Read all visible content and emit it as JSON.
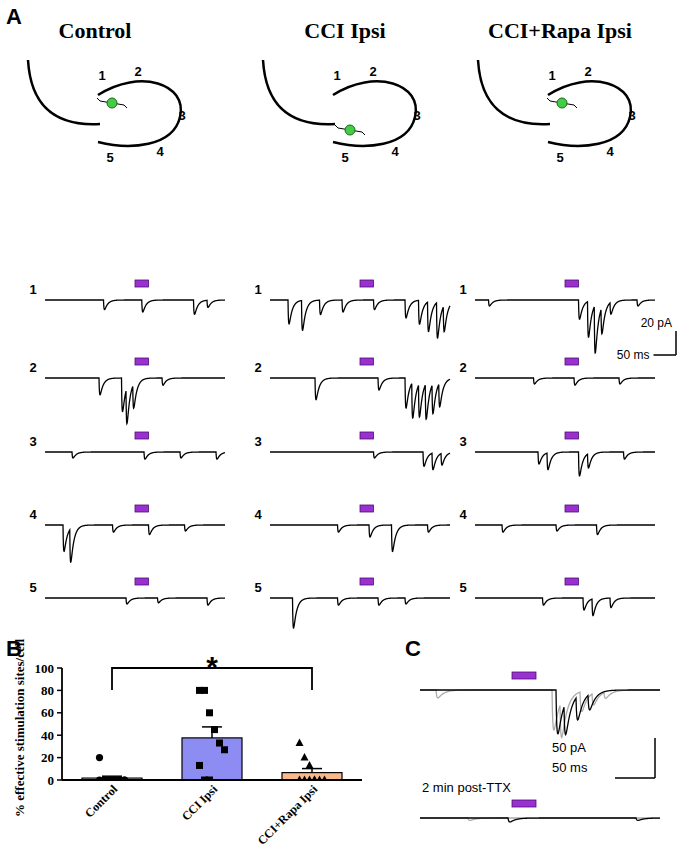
{
  "panel_labels": {
    "a": "A",
    "b": "B",
    "c": "C"
  },
  "panel_a": {
    "window_ms": [
      0,
      400
    ],
    "stimulus": {
      "start_ms": 200,
      "duration_ms": 30
    },
    "scale_bar": {
      "amplitude_pA": 20,
      "amplitude_label": "20 pA",
      "time_ms": 50,
      "time_label": "50 ms"
    },
    "sites": [
      "1",
      "2",
      "3",
      "4",
      "5"
    ],
    "groups": [
      {
        "title": "Control",
        "cell_near_site": "1",
        "traces": [
          [
            [
              130,
              8
            ],
            [
              215,
              10
            ],
            [
              330,
              12
            ],
            [
              360,
              6
            ]
          ],
          [
            [
              120,
              14
            ],
            [
              170,
              28
            ],
            [
              180,
              30
            ],
            [
              195,
              20
            ],
            [
              260,
              6
            ]
          ],
          [
            [
              60,
              5
            ],
            [
              220,
              6
            ],
            [
              300,
              5
            ],
            [
              380,
              6
            ]
          ],
          [
            [
              40,
              22
            ],
            [
              55,
              28
            ],
            [
              150,
              6
            ],
            [
              230,
              8
            ],
            [
              310,
              5
            ]
          ],
          [
            [
              180,
              5
            ],
            [
              250,
              4
            ],
            [
              360,
              6
            ]
          ]
        ]
      },
      {
        "title": "CCI Ipsi",
        "cell_near_site": "5",
        "traces": [
          [
            [
              40,
              20
            ],
            [
              70,
              25
            ],
            [
              110,
              12
            ],
            [
              160,
              10
            ],
            [
              230,
              8
            ],
            [
              300,
              15
            ],
            [
              330,
              20
            ],
            [
              350,
              25
            ],
            [
              370,
              30
            ],
            [
              385,
              22
            ]
          ],
          [
            [
              100,
              18
            ],
            [
              240,
              10
            ],
            [
              300,
              25
            ],
            [
              315,
              30
            ],
            [
              330,
              28
            ],
            [
              345,
              30
            ],
            [
              360,
              25
            ],
            [
              375,
              20
            ]
          ],
          [
            [
              230,
              5
            ],
            [
              340,
              12
            ],
            [
              360,
              14
            ],
            [
              380,
              10
            ]
          ],
          [
            [
              150,
              6
            ],
            [
              220,
              10
            ],
            [
              270,
              22
            ],
            [
              350,
              6
            ]
          ],
          [
            [
              50,
              25
            ],
            [
              150,
              6
            ],
            [
              240,
              6
            ],
            [
              300,
              5
            ]
          ]
        ]
      },
      {
        "title": "CCI+Rapa Ipsi",
        "cell_near_site": "1",
        "traces": [
          [
            [
              30,
              5
            ],
            [
              230,
              16
            ],
            [
              250,
              30
            ],
            [
              265,
              40
            ],
            [
              280,
              22
            ],
            [
              300,
              10
            ],
            [
              360,
              5
            ]
          ],
          [
            [
              130,
              5
            ],
            [
              220,
              6
            ],
            [
              320,
              5
            ]
          ],
          [
            [
              140,
              10
            ],
            [
              160,
              14
            ],
            [
              230,
              20
            ],
            [
              250,
              12
            ],
            [
              330,
              6
            ]
          ],
          [
            [
              60,
              6
            ],
            [
              180,
              5
            ],
            [
              270,
              8
            ]
          ],
          [
            [
              150,
              6
            ],
            [
              240,
              10
            ],
            [
              260,
              14
            ],
            [
              300,
              8
            ]
          ]
        ]
      }
    ]
  },
  "chart_data": {
    "type": "bar",
    "y_label": "% effective stimulation sites/cell",
    "categories": [
      "Control",
      "CCI Ipsi",
      "CCI+Rapa Ipsi"
    ],
    "values": [
      1.7,
      37.6,
      6.6
    ],
    "errors": [
      1.7,
      9.8,
      3.6
    ],
    "points": [
      [
        20,
        0,
        0,
        0,
        0,
        0,
        0,
        0,
        0,
        0,
        0,
        0
      ],
      [
        80,
        80,
        60,
        45,
        33,
        27,
        13,
        0,
        0
      ],
      [
        33,
        20,
        13,
        0,
        0,
        0,
        0,
        0,
        0,
        0
      ]
    ],
    "colors": [
      "#ffffff",
      "#8c8cf2",
      "#f9b98a"
    ],
    "ylim": [
      0,
      100
    ],
    "yticks": [
      0,
      20,
      40,
      60,
      80,
      100
    ],
    "annotations": [
      {
        "text": "*",
        "categories": [
          "Control",
          "CCI+Rapa Ipsi"
        ]
      }
    ]
  },
  "panel_c": {
    "window_ms": [
      0,
      300
    ],
    "stimulus": {
      "start_ms": 115,
      "duration_ms": 30
    },
    "scale_bar": {
      "amplitude_pA": 50,
      "amplitude_label": "50 pA",
      "time_ms": 50,
      "time_label": "50 ms"
    },
    "recordings": [
      {
        "sweeps": [
          {
            "color": "#aaaaaa",
            "events": [
              [
                20,
                10
              ],
              [
                165,
                50
              ],
              [
                175,
                45
              ],
              [
                200,
                25
              ],
              [
                215,
                15
              ],
              [
                230,
                8
              ]
            ]
          },
          {
            "color": "#000000",
            "events": [
              [
                170,
                55
              ],
              [
                180,
                40
              ],
              [
                195,
                30
              ],
              [
                210,
                20
              ]
            ]
          }
        ]
      },
      {
        "label": "2 min post-TTX",
        "sweeps": [
          {
            "color": "#aaaaaa",
            "events": [
              [
                60,
                3
              ]
            ]
          },
          {
            "color": "#000000",
            "events": [
              [
                110,
                5
              ],
              [
                270,
                3
              ]
            ]
          }
        ]
      }
    ]
  }
}
